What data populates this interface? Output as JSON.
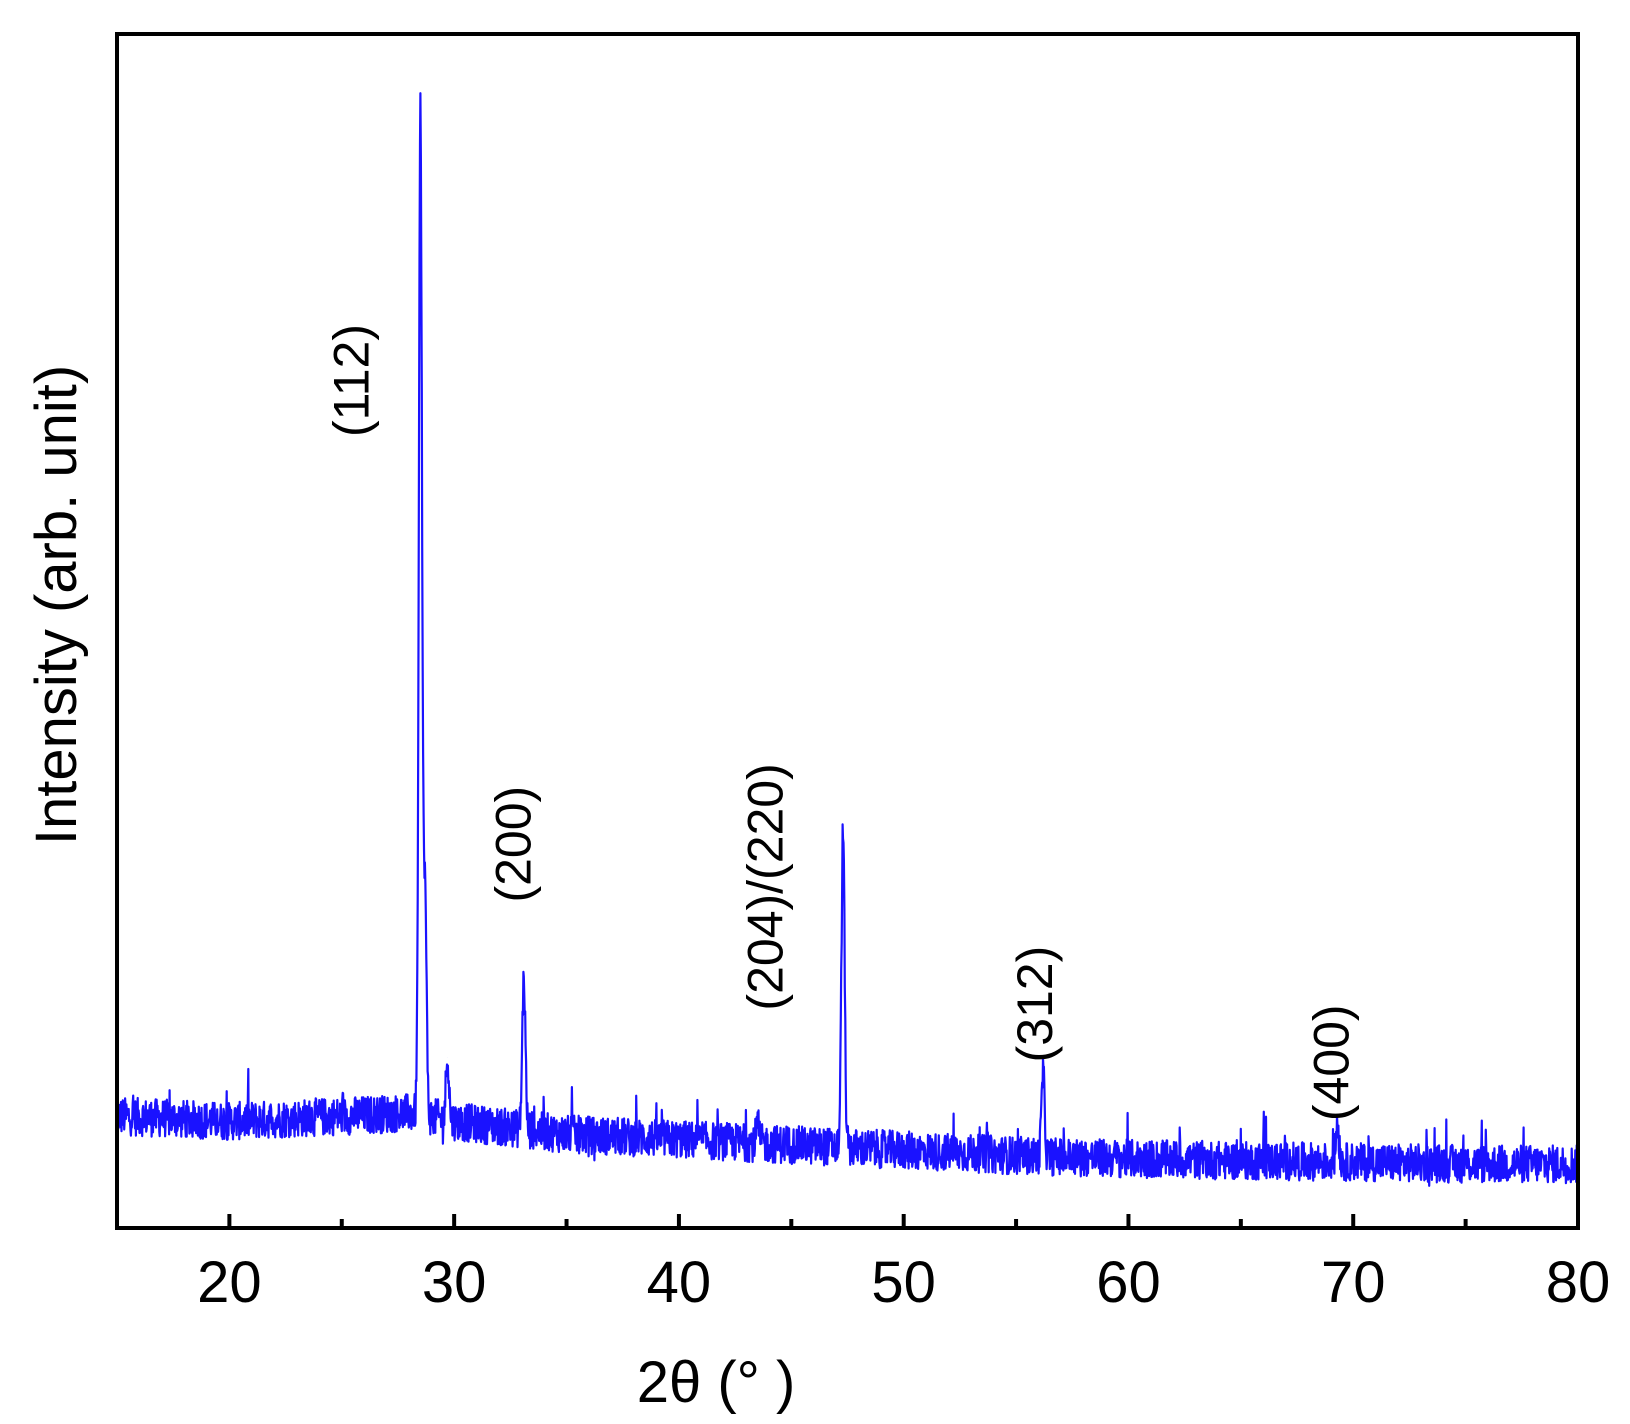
{
  "chart_data": {
    "type": "line",
    "title": "",
    "xlabel": "2θ (°  )",
    "ylabel": "Intensity (arb. unit)",
    "xlim": [
      15,
      80
    ],
    "ylim": [
      0,
      112
    ],
    "x_ticks": [
      20,
      30,
      40,
      50,
      60,
      70,
      80
    ],
    "x_minor_ticks": [
      25,
      35,
      45,
      55,
      65,
      75
    ],
    "y_ticks_labeled": false,
    "grid": false,
    "legend": "none",
    "line_color": "#1a12ff",
    "series": [
      {
        "baseline": [
          {
            "x": 15,
            "y": 10.5
          },
          {
            "x": 20,
            "y": 10.0
          },
          {
            "x": 25,
            "y": 10.5
          },
          {
            "x": 28,
            "y": 10.8
          },
          {
            "x": 30,
            "y": 10.0
          },
          {
            "x": 35,
            "y": 8.8
          },
          {
            "x": 40,
            "y": 8.3
          },
          {
            "x": 45,
            "y": 7.8
          },
          {
            "x": 50,
            "y": 7.3
          },
          {
            "x": 55,
            "y": 6.8
          },
          {
            "x": 60,
            "y": 6.5
          },
          {
            "x": 65,
            "y": 6.3
          },
          {
            "x": 70,
            "y": 6.2
          },
          {
            "x": 75,
            "y": 6.0
          },
          {
            "x": 80,
            "y": 6.0
          }
        ],
        "peaks": [
          {
            "x": 28.5,
            "y": 104.0
          },
          {
            "x": 28.7,
            "y": 32.0
          },
          {
            "x": 29.7,
            "y": 16.0
          },
          {
            "x": 33.1,
            "y": 23.5
          },
          {
            "x": 43.5,
            "y": 9.5
          },
          {
            "x": 47.3,
            "y": 37.5
          },
          {
            "x": 56.2,
            "y": 14.5
          },
          {
            "x": 69.3,
            "y": 10.0
          }
        ]
      }
    ],
    "annotations": [
      {
        "text": "(112)",
        "x": 26.2,
        "y": 79.5
      },
      {
        "text": "(200)",
        "x": 33.4,
        "y": 36.0
      },
      {
        "text": "(204)/(220)",
        "x": 44.6,
        "y": 32.0
      },
      {
        "text": "(312)",
        "x": 56.6,
        "y": 21.0
      },
      {
        "text": "(400)",
        "x": 69.8,
        "y": 15.5
      }
    ]
  }
}
